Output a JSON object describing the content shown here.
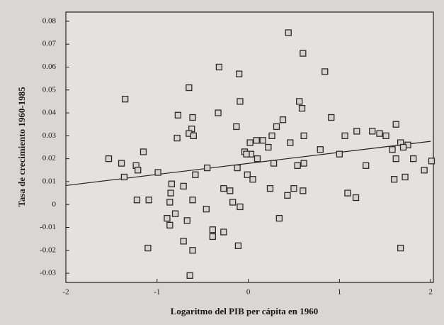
{
  "chart_data": {
    "type": "scatter",
    "x_label": "Logaritmo del PIB per cápita en 1960",
    "y_label": "Tasa de crecimiento 1960-1985",
    "xlim": [
      -2,
      2.03
    ],
    "xticks": [
      -2,
      -1,
      0,
      1,
      2
    ],
    "ylim": [
      -0.034,
      0.084
    ],
    "yticks": [
      -0.03,
      -0.02,
      -0.01,
      0,
      0.01,
      0.02,
      0.03,
      0.04,
      0.05,
      0.06,
      0.07,
      0.08
    ],
    "color": "#2b2b2b",
    "x": [
      0.44,
      0.6,
      -0.32,
      -0.1,
      0.84,
      -0.65,
      -1.35,
      -0.09,
      0.56,
      0.59,
      -0.77,
      -0.33,
      0.91,
      0.38,
      -0.61,
      0.31,
      -0.62,
      -0.13,
      1.62,
      -0.65,
      -0.6,
      0.26,
      0.61,
      1.06,
      1.19,
      1.36,
      1.44,
      1.51,
      -0.78,
      0.09,
      0.16,
      0.02,
      0.46,
      1.67,
      1.75,
      1.7,
      1.58,
      0.22,
      -0.04,
      0.03,
      -0.02,
      0.79,
      -1.15,
      -1.53,
      1.0,
      1.62,
      1.81,
      2.01,
      -1.39,
      -1.23,
      -1.21,
      0.54,
      0.61,
      1.29,
      0.28,
      -0.12,
      -0.45,
      1.93,
      -1.36,
      -0.99,
      -0.58,
      -0.01,
      0.05,
      1.6,
      1.72,
      -0.84,
      -0.71,
      -0.27,
      -0.2,
      0.24,
      0.5,
      0.6,
      0.43,
      -0.85,
      1.09,
      1.18,
      -1.22,
      -1.09,
      -0.61,
      -0.86,
      -0.17,
      -0.09,
      -0.46,
      -0.8,
      -0.89,
      -0.86,
      -0.67,
      -0.39,
      -0.27,
      -0.39,
      -0.71,
      -1.1,
      -0.61,
      -0.11,
      1.67,
      -0.64,
      0.1,
      0.34
    ],
    "values": [
      0.075,
      0.066,
      0.06,
      0.057,
      0.058,
      0.051,
      0.046,
      0.045,
      0.045,
      0.042,
      0.039,
      0.04,
      0.038,
      0.037,
      0.038,
      0.034,
      0.033,
      0.034,
      0.035,
      0.031,
      0.03,
      0.03,
      0.03,
      0.03,
      0.032,
      0.032,
      0.031,
      0.03,
      0.029,
      0.028,
      0.028,
      0.027,
      0.027,
      0.027,
      0.026,
      0.025,
      0.024,
      0.025,
      0.023,
      0.022,
      0.022,
      0.024,
      0.023,
      0.02,
      0.022,
      0.02,
      0.02,
      0.019,
      0.018,
      0.017,
      0.015,
      0.017,
      0.018,
      0.017,
      0.018,
      0.016,
      0.016,
      0.015,
      0.012,
      0.014,
      0.013,
      0.013,
      0.011,
      0.011,
      0.012,
      0.009,
      0.008,
      0.007,
      0.006,
      0.007,
      0.007,
      0.006,
      0.004,
      0.005,
      0.005,
      0.003,
      0.002,
      0.002,
      0.002,
      0.001,
      0.001,
      -0.001,
      -0.002,
      -0.004,
      -0.006,
      -0.009,
      -0.007,
      -0.011,
      -0.012,
      -0.014,
      -0.016,
      -0.019,
      -0.02,
      -0.018,
      -0.019,
      -0.031,
      0.02,
      -0.006
    ],
    "trend_line": {
      "x": [
        -2,
        2
      ],
      "y": [
        0.0083,
        0.0276
      ]
    }
  }
}
